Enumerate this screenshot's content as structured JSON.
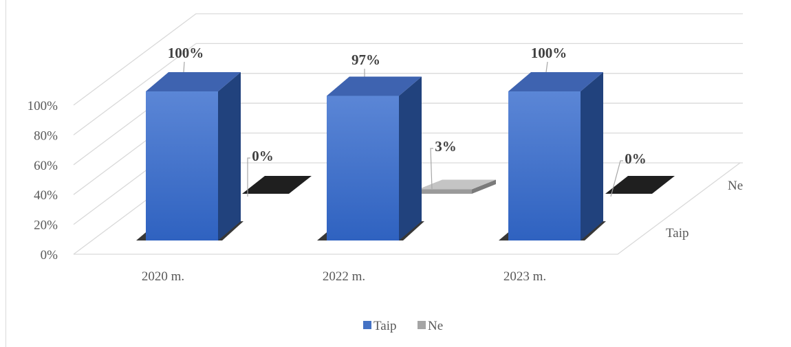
{
  "chart_data": {
    "type": "bar",
    "categories": [
      "2020 m.",
      "2022 m.",
      "2023 m."
    ],
    "series": [
      {
        "name": "Taip",
        "values": [
          100,
          97,
          100
        ],
        "labels": [
          "100%",
          "97%",
          "100%"
        ],
        "color": "#4472C4"
      },
      {
        "name": "Ne",
        "values": [
          0,
          3,
          0
        ],
        "labels": [
          "0%",
          "3%",
          "0%"
        ],
        "color": "#A5A5A5"
      }
    ],
    "y_ticks": [
      "0%",
      "20%",
      "40%",
      "60%",
      "80%",
      "100%"
    ],
    "ylim": [
      0,
      100
    ],
    "depth_labels": [
      "Taip",
      "Ne"
    ],
    "legend": {
      "position": "bottom",
      "items": [
        "Taip",
        "Ne"
      ]
    },
    "grid": true
  }
}
